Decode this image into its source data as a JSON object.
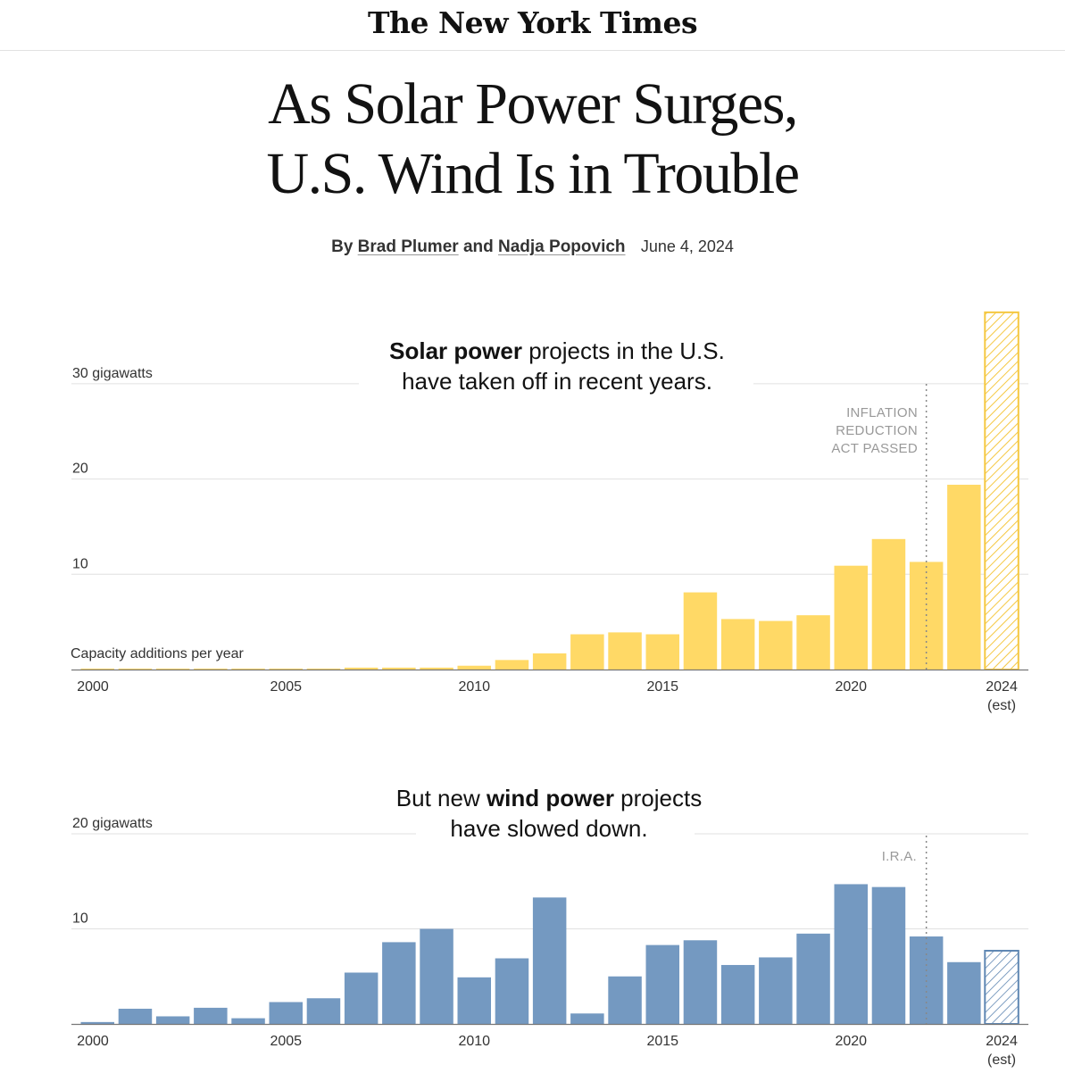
{
  "masthead": "The New York Times",
  "headline": {
    "line1": "As Solar Power Surges,",
    "line2": "U.S. Wind Is in Trouble"
  },
  "byline": {
    "by": "By",
    "author1": "Brad Plumer",
    "and": "and",
    "author2": "Nadja Popovich",
    "date": "June 4, 2024"
  },
  "colors": {
    "solar": "#ffd966",
    "wind": "#7499c1",
    "solar_est": "#f5c842",
    "wind_est": "#5f87b3",
    "gridline": "#e0e0e0",
    "note": "#999999"
  },
  "chart_data": [
    {
      "type": "bar",
      "title_parts": {
        "bold": "Solar power",
        "rest1": " projects in the U.S.",
        "line2": "have taken off in recent years."
      },
      "unit_label": "gigawatts",
      "subtitle": "Capacity additions per year",
      "y_ticks": [
        {
          "value": 30,
          "label": "30 gigawatts"
        },
        {
          "value": 20,
          "label": "20"
        },
        {
          "value": 10,
          "label": "10"
        }
      ],
      "ylim": [
        0,
        38
      ],
      "x": [
        2000,
        2001,
        2002,
        2003,
        2004,
        2005,
        2006,
        2007,
        2008,
        2009,
        2010,
        2011,
        2012,
        2013,
        2014,
        2015,
        2016,
        2017,
        2018,
        2019,
        2020,
        2021,
        2022,
        2023,
        2024
      ],
      "values": [
        0.1,
        0.1,
        0.1,
        0.1,
        0.1,
        0.1,
        0.1,
        0.2,
        0.2,
        0.2,
        0.4,
        1.0,
        1.7,
        3.7,
        3.9,
        3.7,
        8.1,
        5.3,
        5.1,
        5.7,
        10.9,
        13.7,
        11.3,
        19.4,
        37.5
      ],
      "estimated_years": [
        2024
      ],
      "x_tick_labels": [
        {
          "year": 2000,
          "label": "2000"
        },
        {
          "year": 2005,
          "label": "2005"
        },
        {
          "year": 2010,
          "label": "2010"
        },
        {
          "year": 2015,
          "label": "2015"
        },
        {
          "year": 2020,
          "label": "2020"
        },
        {
          "year": 2024,
          "label": "2024",
          "sub": "(est)"
        }
      ],
      "annotation": {
        "year": 2022,
        "lines": [
          "INFLATION",
          "REDUCTION",
          "ACT PASSED"
        ]
      },
      "grid": true
    },
    {
      "type": "bar",
      "title_parts": {
        "pre": "But new ",
        "bold": "wind power",
        "rest1": " projects",
        "line2": "have slowed down."
      },
      "unit_label": "gigawatts",
      "y_ticks": [
        {
          "value": 20,
          "label": "20 gigawatts"
        },
        {
          "value": 10,
          "label": "10"
        }
      ],
      "ylim": [
        0,
        20
      ],
      "x": [
        2000,
        2001,
        2002,
        2003,
        2004,
        2005,
        2006,
        2007,
        2008,
        2009,
        2010,
        2011,
        2012,
        2013,
        2014,
        2015,
        2016,
        2017,
        2018,
        2019,
        2020,
        2021,
        2022,
        2023,
        2024
      ],
      "values": [
        0.2,
        1.6,
        0.8,
        1.7,
        0.6,
        2.3,
        2.7,
        5.4,
        8.6,
        10.0,
        4.9,
        6.9,
        13.3,
        1.1,
        5.0,
        8.3,
        8.8,
        6.2,
        7.0,
        9.5,
        14.7,
        14.4,
        9.2,
        6.5,
        7.7
      ],
      "estimated_years": [
        2024
      ],
      "x_tick_labels": [
        {
          "year": 2000,
          "label": "2000"
        },
        {
          "year": 2005,
          "label": "2005"
        },
        {
          "year": 2010,
          "label": "2010"
        },
        {
          "year": 2015,
          "label": "2015"
        },
        {
          "year": 2020,
          "label": "2020"
        },
        {
          "year": 2024,
          "label": "2024",
          "sub": "(est)"
        }
      ],
      "annotation": {
        "year": 2022,
        "lines": [
          "I.R.A."
        ]
      },
      "grid": true
    }
  ]
}
